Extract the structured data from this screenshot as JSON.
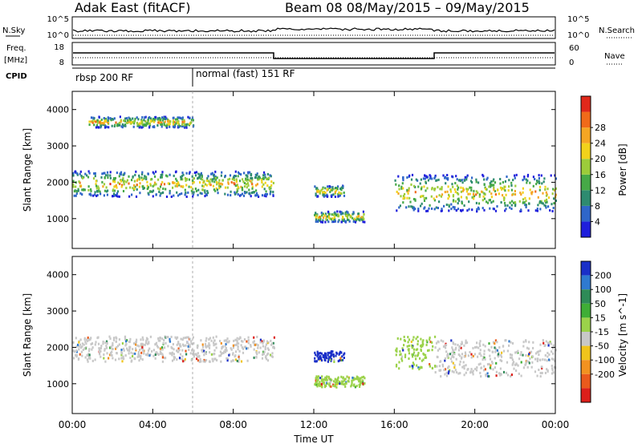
{
  "header": {
    "title": "Adak East (fitACF)",
    "subtitle": "Beam 08  08/May/2015 – 09/May/2015"
  },
  "top_panels": {
    "nsky_label": "N.Sky",
    "nsky_ticks": [
      "10^5",
      "10^0"
    ],
    "nsearch_label": "N.Search",
    "nsearch_ticks": [
      "10^5",
      "10^0"
    ],
    "freq_label": "Freq.",
    "freq_unit": "[MHz]",
    "freq_ticks": [
      "18",
      "8"
    ],
    "nave_label": "Nave",
    "nave_ticks": [
      "60",
      "0"
    ],
    "cpid_label": "CPID",
    "cpid_segments": [
      {
        "label": "rbsp 200 RF",
        "start": "00:00",
        "end": "06:00"
      },
      {
        "label": "normal (fast) 151 RF",
        "start": "06:00",
        "end": "24:00"
      }
    ]
  },
  "chart_data": [
    {
      "type": "heatmap",
      "title": "",
      "ylabel": "Slant Range [km]",
      "xlabel": "",
      "xlim": [
        "00:00",
        "24:00"
      ],
      "ylim": [
        180,
        4500
      ],
      "x_ticks": [
        "00:00",
        "04:00",
        "08:00",
        "12:00",
        "16:00",
        "20:00",
        "00:00"
      ],
      "y_ticks": [
        1000,
        2000,
        3000,
        4000
      ],
      "colorbar": {
        "label": "Power [dB]",
        "ticks": [
          "4",
          "8",
          "12",
          "16",
          "20",
          "24",
          "28"
        ],
        "colors": [
          "#1f1fdc",
          "#2f66c9",
          "#2e8b70",
          "#46a947",
          "#9ccc3a",
          "#f2d21b",
          "#f5a623",
          "#f06a19",
          "#e0281a"
        ]
      },
      "echo_regions": [
        {
          "t_start": 0.0,
          "t_end": 10.0,
          "r_low": 1600,
          "r_high": 2300,
          "level": "12-24 dB"
        },
        {
          "t_start": 0.8,
          "t_end": 6.0,
          "r_low": 3500,
          "r_high": 3800,
          "level": "4-12 dB"
        },
        {
          "t_start": 12.0,
          "t_end": 13.5,
          "r_low": 1600,
          "r_high": 1900,
          "level": "8-16 dB"
        },
        {
          "t_start": 12.0,
          "t_end": 14.5,
          "r_low": 900,
          "r_high": 1200,
          "level": "4-12 dB"
        },
        {
          "t_start": 16.0,
          "t_end": 24.0,
          "r_low": 1200,
          "r_high": 2200,
          "level": "16-28 dB"
        }
      ]
    },
    {
      "type": "heatmap",
      "title": "",
      "ylabel": "Slant Range [km]",
      "xlabel": "Time UT",
      "xlim": [
        "00:00",
        "24:00"
      ],
      "ylim": [
        180,
        4500
      ],
      "x_ticks": [
        "00:00",
        "04:00",
        "08:00",
        "12:00",
        "16:00",
        "20:00",
        "00:00"
      ],
      "y_ticks": [
        1000,
        2000,
        3000,
        4000
      ],
      "colorbar": {
        "label": "Velocity [m s^-1]",
        "ticks": [
          "200",
          "100",
          "50",
          "15",
          "-15",
          "-50",
          "-100",
          "-200"
        ],
        "colors": [
          "#1a2fc8",
          "#2f7ad0",
          "#2e8b57",
          "#3fae36",
          "#9bd24a",
          "#c8c8c8",
          "#f0c41c",
          "#f29220",
          "#ea5a1c",
          "#dc1f1a"
        ]
      },
      "echo_regions": [
        {
          "t_start": 0.0,
          "t_end": 10.0,
          "r_low": 1600,
          "r_high": 2300,
          "level": "-15 to 15 m/s"
        },
        {
          "t_start": 12.0,
          "t_end": 13.5,
          "r_low": 1600,
          "r_high": 1900,
          "level": "100-200 m/s"
        },
        {
          "t_start": 12.0,
          "t_end": 14.5,
          "r_low": 900,
          "r_high": 1200,
          "level": "15-50 m/s"
        },
        {
          "t_start": 16.0,
          "t_end": 18.0,
          "r_low": 1400,
          "r_high": 2300,
          "level": "15-50 m/s"
        },
        {
          "t_start": 18.0,
          "t_end": 24.0,
          "r_low": 1200,
          "r_high": 2200,
          "level": "-15 to 15 m/s"
        }
      ]
    }
  ],
  "xaxis_title": "Time UT"
}
